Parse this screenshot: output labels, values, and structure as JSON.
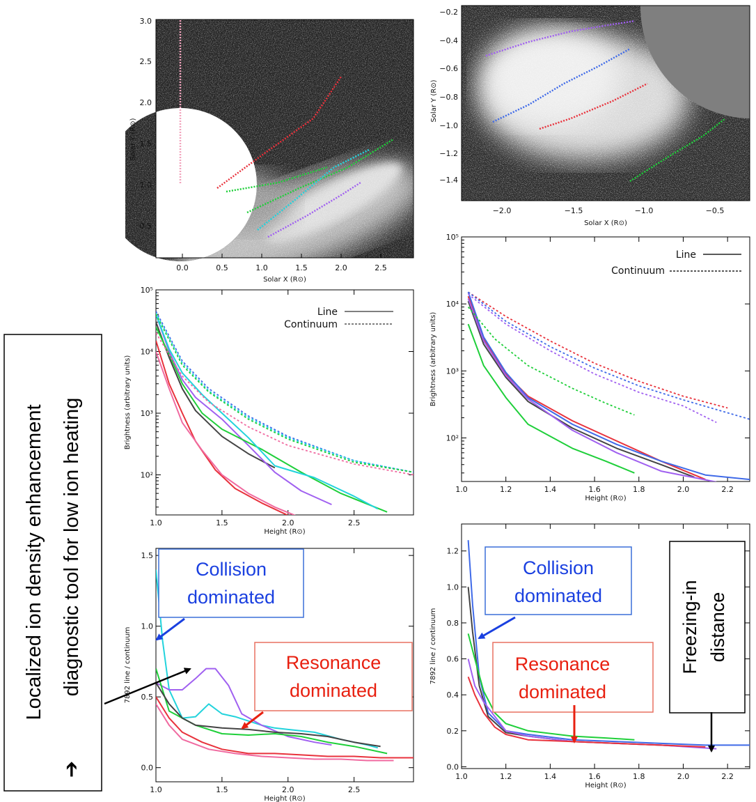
{
  "colors": {
    "red": "#e8323c",
    "pink": "#f06aa0",
    "green": "#1fcf3a",
    "cyan": "#22d3dc",
    "purple": "#a060f0",
    "blue": "#3f6ae8",
    "dark": "#444444",
    "lightpink": "#f2a3bd",
    "annBlue": "#1a40e0",
    "annRed": "#e82010"
  },
  "side_annotation": {
    "line1": "Localized ion density enhancement",
    "arrow": "➔",
    "line2": "diagnostic tool for low ion heating"
  },
  "panels": {
    "left_image": {
      "xlabel": "Solar X (R⊙)",
      "ylabel": "Solar Y (R⊙)",
      "xticks": [
        "0.0",
        "0.5",
        "1.0",
        "1.5",
        "2.0",
        "2.5"
      ],
      "yticks": [
        "0.5",
        "1.0",
        "1.5",
        "2.0",
        "2.5",
        "3.0"
      ]
    },
    "right_image": {
      "xlabel": "Solar X (R⊙)",
      "ylabel": "Solar Y (R⊙)",
      "xticks": [
        "−2.0",
        "−1.5",
        "−1.0",
        "−0.5"
      ],
      "yticks": [
        "−0.2",
        "−0.4",
        "−0.6",
        "−0.8",
        "−1.0",
        "−1.2",
        "−1.4"
      ]
    },
    "left_bright": {
      "legend_line": "Line",
      "legend_cont": "Continuum"
    },
    "right_bright": {
      "legend_line": "Line",
      "legend_cont": "Continuum"
    },
    "left_ratio": {
      "box1": [
        "Collision",
        "dominated"
      ],
      "box2": [
        "Resonance",
        "dominated"
      ]
    },
    "right_ratio": {
      "box1": [
        "Collision",
        "dominated"
      ],
      "box2": [
        "Resonance",
        "dominated"
      ],
      "box3": [
        "Freezing-in",
        "distance"
      ]
    }
  },
  "chart_data": [
    {
      "type": "line",
      "xlabel": "Height (R⊙)",
      "ylabel": "Brightness (arbitrary units)",
      "xlim": [
        1.0,
        2.95
      ],
      "ylim_log10": [
        1.35,
        5.0
      ],
      "log_y": true,
      "xticks": [
        "1.0",
        "1.5",
        "2.0",
        "2.5"
      ],
      "yticks": [
        "10²",
        "10³",
        "10⁴",
        "10⁵"
      ],
      "series": [
        {
          "color": "red",
          "dash": false,
          "x": [
            1.0,
            1.1,
            1.2,
            1.3,
            1.45,
            1.6,
            1.8,
            2.0,
            2.2
          ],
          "y": [
            15000,
            3000,
            1000,
            350,
            120,
            60,
            35,
            22,
            18
          ]
        },
        {
          "color": "pink",
          "dash": false,
          "x": [
            1.0,
            1.1,
            1.2,
            1.35,
            1.5,
            1.7,
            1.9,
            2.1
          ],
          "y": [
            10000,
            2500,
            700,
            250,
            100,
            50,
            30,
            20
          ]
        },
        {
          "color": "dark",
          "dash": false,
          "x": [
            1.0,
            1.1,
            1.2,
            1.3,
            1.5,
            1.7,
            1.9
          ],
          "y": [
            30000,
            8000,
            2500,
            1100,
            420,
            220,
            130
          ]
        },
        {
          "color": "purple",
          "dash": false,
          "x": [
            1.0,
            1.1,
            1.2,
            1.3,
            1.5,
            1.7,
            1.9,
            2.1,
            2.33
          ],
          "y": [
            40000,
            10000,
            3500,
            1800,
            800,
            300,
            110,
            55,
            33
          ]
        },
        {
          "color": "green",
          "dash": false,
          "x": [
            1.0,
            1.1,
            1.2,
            1.35,
            1.5,
            1.8,
            2.1,
            2.4,
            2.75
          ],
          "y": [
            25000,
            9000,
            3000,
            1000,
            550,
            260,
            110,
            50,
            25
          ]
        },
        {
          "color": "cyan",
          "dash": false,
          "x": [
            1.0,
            1.1,
            1.2,
            1.35,
            1.5,
            1.7,
            1.9,
            2.2,
            2.5,
            2.68
          ],
          "y": [
            40000,
            11000,
            4500,
            2000,
            1000,
            400,
            140,
            90,
            45,
            28
          ]
        },
        {
          "color": "blue",
          "dash": true,
          "x": [
            1.0,
            1.2,
            1.4,
            1.7,
            2.0,
            2.5,
            2.95
          ],
          "y": [
            45000,
            7000,
            2500,
            900,
            420,
            170,
            110
          ]
        },
        {
          "color": "cyan",
          "dash": true,
          "x": [
            1.0,
            1.2,
            1.4,
            1.7,
            2.0,
            2.5,
            2.95
          ],
          "y": [
            42000,
            6500,
            2300,
            850,
            400,
            170,
            110
          ]
        },
        {
          "color": "green",
          "dash": true,
          "x": [
            1.0,
            1.2,
            1.4,
            1.7,
            2.0,
            2.5,
            2.95
          ],
          "y": [
            40000,
            6000,
            2200,
            800,
            380,
            160,
            110
          ]
        },
        {
          "color": "pink",
          "dash": true,
          "x": [
            1.0,
            1.2,
            1.4,
            1.7,
            2.0,
            2.5,
            2.95
          ],
          "y": [
            20000,
            4000,
            1500,
            600,
            300,
            150,
            100
          ]
        }
      ]
    },
    {
      "type": "line",
      "xlabel": "Height (R⊙)",
      "ylabel": "Brightness (arbitrary units)",
      "xlim": [
        1.0,
        2.3
      ],
      "ylim_log10": [
        1.35,
        5.0
      ],
      "log_y": true,
      "xticks": [
        "1.0",
        "1.2",
        "1.4",
        "1.6",
        "1.8",
        "2.0",
        "2.2"
      ],
      "yticks": [
        "10²",
        "10³",
        "10⁴",
        "10⁵"
      ],
      "series": [
        {
          "color": "red",
          "dash": false,
          "x": [
            1.03,
            1.1,
            1.2,
            1.3,
            1.5,
            1.7,
            1.9,
            2.1
          ],
          "y": [
            13000,
            3000,
            900,
            420,
            180,
            90,
            45,
            24
          ]
        },
        {
          "color": "blue",
          "dash": false,
          "x": [
            1.03,
            1.1,
            1.2,
            1.3,
            1.5,
            1.7,
            1.9,
            2.1,
            2.3
          ],
          "y": [
            15000,
            3200,
            950,
            400,
            160,
            80,
            45,
            28,
            24
          ]
        },
        {
          "color": "dark",
          "dash": false,
          "x": [
            1.03,
            1.1,
            1.2,
            1.3,
            1.5,
            1.7,
            1.9,
            2.05
          ],
          "y": [
            11000,
            2500,
            800,
            350,
            140,
            70,
            40,
            26
          ]
        },
        {
          "color": "purple",
          "dash": false,
          "x": [
            1.03,
            1.1,
            1.2,
            1.3,
            1.5,
            1.7,
            1.9,
            2.15
          ],
          "y": [
            12000,
            2800,
            850,
            380,
            130,
            60,
            32,
            22
          ]
        },
        {
          "color": "green",
          "dash": false,
          "x": [
            1.03,
            1.1,
            1.2,
            1.3,
            1.5,
            1.65,
            1.78
          ],
          "y": [
            5000,
            1200,
            400,
            160,
            70,
            45,
            30
          ]
        },
        {
          "color": "red",
          "dash": true,
          "x": [
            1.03,
            1.2,
            1.4,
            1.6,
            1.8,
            2.0,
            2.2
          ],
          "y": [
            15000,
            6500,
            2800,
            1300,
            700,
            420,
            280
          ]
        },
        {
          "color": "blue",
          "dash": true,
          "x": [
            1.03,
            1.2,
            1.4,
            1.6,
            1.8,
            2.0,
            2.3
          ],
          "y": [
            15000,
            5500,
            2300,
            1100,
            600,
            370,
            190
          ]
        },
        {
          "color": "purple",
          "dash": true,
          "x": [
            1.03,
            1.2,
            1.4,
            1.6,
            1.8,
            2.0,
            2.15
          ],
          "y": [
            14000,
            5000,
            2000,
            900,
            480,
            300,
            170
          ]
        },
        {
          "color": "green",
          "dash": true,
          "x": [
            1.03,
            1.15,
            1.3,
            1.5,
            1.65,
            1.78
          ],
          "y": [
            9000,
            3000,
            1200,
            550,
            330,
            220
          ]
        }
      ]
    },
    {
      "type": "line",
      "xlabel": "Height (R⊙)",
      "ylabel": "7892 line / continuum",
      "xlim": [
        1.0,
        2.95
      ],
      "ylim": [
        -0.1,
        1.55
      ],
      "xticks": [
        "1.0",
        "1.5",
        "2.0",
        "2.5"
      ],
      "yticks": [
        "0.0",
        "0.5",
        "1.0",
        "1.5"
      ],
      "series": [
        {
          "color": "cyan",
          "dash": false,
          "x": [
            1.0,
            1.05,
            1.1,
            1.2,
            1.3,
            1.4,
            1.5,
            1.6,
            1.7,
            1.8,
            1.9,
            2.0,
            2.2,
            2.4,
            2.6,
            2.68
          ],
          "y": [
            1.4,
            0.9,
            0.55,
            0.35,
            0.36,
            0.45,
            0.38,
            0.36,
            0.33,
            0.3,
            0.28,
            0.27,
            0.25,
            0.2,
            0.16,
            0.14
          ]
        },
        {
          "color": "purple",
          "dash": false,
          "x": [
            1.0,
            1.1,
            1.2,
            1.3,
            1.38,
            1.45,
            1.55,
            1.65,
            1.8,
            2.0,
            2.2,
            2.33
          ],
          "y": [
            0.6,
            0.55,
            0.55,
            0.63,
            0.7,
            0.7,
            0.58,
            0.38,
            0.3,
            0.22,
            0.18,
            0.16
          ]
        },
        {
          "color": "green",
          "dash": false,
          "x": [
            1.0,
            1.1,
            1.2,
            1.3,
            1.5,
            1.7,
            1.9,
            2.1,
            2.3,
            2.5,
            2.75
          ],
          "y": [
            0.7,
            0.4,
            0.35,
            0.3,
            0.24,
            0.23,
            0.24,
            0.22,
            0.18,
            0.15,
            0.1
          ]
        },
        {
          "color": "dark",
          "dash": false,
          "x": [
            1.0,
            1.1,
            1.2,
            1.3,
            1.5,
            1.7,
            1.9,
            2.1,
            2.3,
            2.5,
            2.7
          ],
          "y": [
            0.6,
            0.45,
            0.35,
            0.3,
            0.28,
            0.27,
            0.25,
            0.24,
            0.22,
            0.18,
            0.15
          ]
        },
        {
          "color": "red",
          "dash": false,
          "x": [
            1.0,
            1.1,
            1.2,
            1.35,
            1.5,
            1.7,
            1.9,
            2.1,
            2.3,
            2.5,
            2.7,
            2.95
          ],
          "y": [
            0.5,
            0.35,
            0.25,
            0.18,
            0.13,
            0.1,
            0.1,
            0.09,
            0.08,
            0.08,
            0.07,
            0.07
          ]
        },
        {
          "color": "pink",
          "dash": false,
          "x": [
            1.0,
            1.1,
            1.2,
            1.4,
            1.6,
            1.8,
            2.0,
            2.2,
            2.4,
            2.6,
            2.8
          ],
          "y": [
            0.45,
            0.3,
            0.2,
            0.13,
            0.1,
            0.08,
            0.07,
            0.06,
            0.06,
            0.05,
            0.05
          ]
        }
      ]
    },
    {
      "type": "line",
      "xlabel": "Height (R⊙)",
      "ylabel": "7892 line / continuum",
      "xlim": [
        1.0,
        2.3
      ],
      "ylim": [
        -0.01,
        1.35
      ],
      "xticks": [
        "1.0",
        "1.2",
        "1.4",
        "1.6",
        "1.8",
        "2.0",
        "2.2"
      ],
      "yticks": [
        "0.0",
        "0.2",
        "0.4",
        "0.6",
        "0.8",
        "1.0",
        "1.2"
      ],
      "series": [
        {
          "color": "blue",
          "dash": false,
          "x": [
            1.03,
            1.05,
            1.08,
            1.12,
            1.2,
            1.3,
            1.5,
            1.7,
            1.9,
            2.1,
            2.3
          ],
          "y": [
            1.26,
            0.9,
            0.5,
            0.3,
            0.2,
            0.18,
            0.15,
            0.14,
            0.13,
            0.12,
            0.12
          ]
        },
        {
          "color": "dark",
          "dash": false,
          "x": [
            1.03,
            1.05,
            1.08,
            1.12,
            1.2,
            1.3,
            1.5,
            1.7,
            1.9,
            2.05
          ],
          "y": [
            1.0,
            0.75,
            0.45,
            0.28,
            0.19,
            0.17,
            0.14,
            0.13,
            0.12,
            0.11
          ]
        },
        {
          "color": "green",
          "dash": false,
          "x": [
            1.03,
            1.06,
            1.1,
            1.15,
            1.2,
            1.3,
            1.5,
            1.65,
            1.78
          ],
          "y": [
            0.74,
            0.6,
            0.42,
            0.3,
            0.24,
            0.2,
            0.17,
            0.16,
            0.15
          ]
        },
        {
          "color": "purple",
          "dash": false,
          "x": [
            1.03,
            1.06,
            1.1,
            1.15,
            1.2,
            1.3,
            1.5,
            1.7,
            1.9,
            2.15
          ],
          "y": [
            0.6,
            0.45,
            0.36,
            0.28,
            0.2,
            0.17,
            0.14,
            0.13,
            0.12,
            0.1
          ]
        },
        {
          "color": "red",
          "dash": false,
          "x": [
            1.03,
            1.06,
            1.1,
            1.15,
            1.2,
            1.3,
            1.5,
            1.7,
            1.9,
            2.1
          ],
          "y": [
            0.5,
            0.4,
            0.3,
            0.22,
            0.18,
            0.15,
            0.14,
            0.13,
            0.12,
            0.11
          ]
        }
      ]
    }
  ]
}
